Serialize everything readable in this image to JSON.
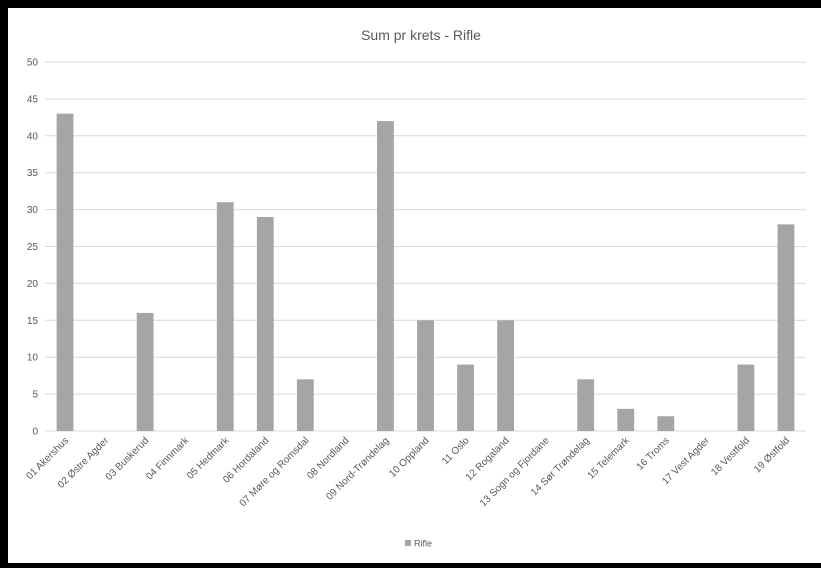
{
  "chart_data": {
    "type": "bar",
    "title": "Sum pr krets - Rifle",
    "xlabel": "",
    "ylabel": "",
    "ylim": [
      0,
      50
    ],
    "ytick_step": 5,
    "grid": true,
    "legend_position": "bottom",
    "categories": [
      "01 Akershus",
      "02 Østre Agder",
      "03 Buskerud",
      "04 Finnmark",
      "05 Hedmark",
      "06 Hordaland",
      "07 Møre og Romsdal",
      "08 Nordland",
      "09 Nord-Trøndelag",
      "10 Oppland",
      "11 Oslo",
      "12 Rogaland",
      "13 Sogn og Fjordane",
      "14 Sør Trøndelag",
      "15 Telemark",
      "16 Troms",
      "17 Vest Agder",
      "18 Vestfold",
      "19 Østfold"
    ],
    "series": [
      {
        "name": "Rifle",
        "values": [
          43,
          0,
          16,
          0,
          31,
          29,
          7,
          0,
          42,
          15,
          9,
          15,
          0,
          7,
          3,
          2,
          0,
          9,
          28
        ]
      }
    ],
    "colors": {
      "bar": "#a5a5a5",
      "grid": "#d9d9d9",
      "text": "#595959",
      "title": "#595959"
    }
  }
}
